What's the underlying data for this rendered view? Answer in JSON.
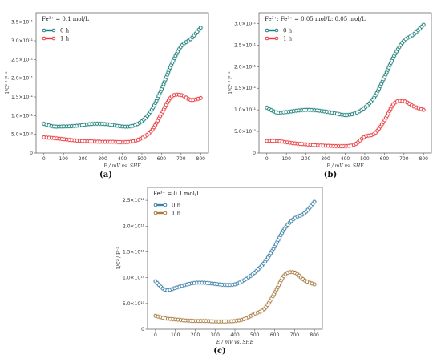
{
  "chart_data": [
    {
      "id": "a",
      "type": "line",
      "caption": "(a)",
      "annotation": "Fe²⁺ = 0.1 mol/L",
      "xlabel": "E / mV vs. SHE",
      "ylabel": "1/C² / F⁻²",
      "xlim": [
        -40,
        840
      ],
      "ylim": [
        0,
        375000000000.0
      ],
      "xticks": [
        0,
        100,
        200,
        300,
        400,
        500,
        600,
        700,
        800
      ],
      "yticks": [
        0,
        50000000000.0,
        100000000000.0,
        150000000000.0,
        200000000000.0,
        250000000000.0,
        300000000000.0,
        350000000000.0
      ],
      "ytick_labels": [
        "0",
        "5.0×10¹⁰",
        "1.0×10¹¹",
        "1.5×10¹¹",
        "2.0×10¹¹",
        "2.5×10¹¹",
        "3.0×10¹¹",
        "3.5×10¹¹"
      ],
      "legend_position": "top-left",
      "series": [
        {
          "name": "0 h",
          "color": "#1b7f7a",
          "x": [
            0,
            50,
            100,
            150,
            200,
            250,
            300,
            350,
            400,
            450,
            500,
            550,
            600,
            650,
            700,
            750,
            800
          ],
          "y": [
            78000000000.0,
            71000000000.0,
            71000000000.0,
            72000000000.0,
            75000000000.0,
            78000000000.0,
            78000000000.0,
            75000000000.0,
            71000000000.0,
            72000000000.0,
            85000000000.0,
            115000000000.0,
            170000000000.0,
            235000000000.0,
            285000000000.0,
            305000000000.0,
            335000000000.0
          ]
        },
        {
          "name": "1 h",
          "color": "#e8383d",
          "x": [
            0,
            50,
            100,
            150,
            200,
            250,
            300,
            350,
            400,
            450,
            500,
            550,
            600,
            650,
            700,
            750,
            800
          ],
          "y": [
            42000000000.0,
            40000000000.0,
            37000000000.0,
            34000000000.0,
            32000000000.0,
            31000000000.0,
            30000000000.0,
            30000000000.0,
            29000000000.0,
            31000000000.0,
            40000000000.0,
            60000000000.0,
            105000000000.0,
            150000000000.0,
            155000000000.0,
            142000000000.0,
            147000000000.0
          ]
        }
      ]
    },
    {
      "id": "b",
      "type": "line",
      "caption": "(b)",
      "annotation": "Fe²⁺: Fe³⁺ = 0.05 mol/L: 0.05 mol/L",
      "xlabel": "E / mV vs. SHE",
      "ylabel": "1/C² / F⁻²",
      "xlim": [
        -40,
        840
      ],
      "ylim": [
        0,
        325000000000.0
      ],
      "xticks": [
        0,
        100,
        200,
        300,
        400,
        500,
        600,
        700,
        800
      ],
      "yticks": [
        0,
        50000000000.0,
        100000000000.0,
        150000000000.0,
        200000000000.0,
        250000000000.0,
        300000000000.0
      ],
      "ytick_labels": [
        "0",
        "5.0×10¹⁰",
        "1.0×10¹¹",
        "1.5×10¹¹",
        "2.0×10¹¹",
        "2.5×10¹¹",
        "3.0×10¹¹"
      ],
      "legend_position": "top-left",
      "series": [
        {
          "name": "0 h",
          "color": "#1b7f7a",
          "x": [
            0,
            50,
            100,
            150,
            200,
            250,
            300,
            350,
            400,
            450,
            500,
            550,
            600,
            650,
            700,
            750,
            800
          ],
          "y": [
            105000000000.0,
            94000000000.0,
            95000000000.0,
            98000000000.0,
            100000000000.0,
            99000000000.0,
            96000000000.0,
            92000000000.0,
            88000000000.0,
            92000000000.0,
            105000000000.0,
            130000000000.0,
            175000000000.0,
            225000000000.0,
            260000000000.0,
            275000000000.0,
            297000000000.0
          ]
        },
        {
          "name": "1 h",
          "color": "#e8383d",
          "x": [
            0,
            50,
            100,
            150,
            200,
            250,
            300,
            350,
            400,
            450,
            500,
            550,
            600,
            650,
            700,
            750,
            800
          ],
          "y": [
            28000000000.0,
            28000000000.0,
            25000000000.0,
            22000000000.0,
            20000000000.0,
            18000000000.0,
            17000000000.0,
            16000000000.0,
            16000000000.0,
            20000000000.0,
            38000000000.0,
            45000000000.0,
            75000000000.0,
            115000000000.0,
            120000000000.0,
            108000000000.0,
            100000000000.0
          ]
        }
      ]
    },
    {
      "id": "c",
      "type": "line",
      "caption": "(c)",
      "annotation": "Fe³⁺ = 0.1 mol/L",
      "xlabel": "E / mV vs. SHE",
      "ylabel": "1/C² / F⁻²",
      "xlim": [
        -40,
        840
      ],
      "ylim": [
        0,
        275000000000.0
      ],
      "xticks": [
        0,
        100,
        200,
        300,
        400,
        500,
        600,
        700,
        800
      ],
      "yticks": [
        0,
        50000000000.0,
        100000000000.0,
        150000000000.0,
        200000000000.0,
        250000000000.0
      ],
      "ytick_labels": [
        "0",
        "5.0×10¹⁰",
        "1.0×10¹¹",
        "1.5×10¹¹",
        "2.0×10¹¹",
        "2.5×10¹¹"
      ],
      "legend_position": "top-left",
      "series": [
        {
          "name": "0 h",
          "color": "#3d7fa8",
          "x": [
            0,
            50,
            100,
            150,
            200,
            250,
            300,
            350,
            400,
            450,
            500,
            550,
            600,
            650,
            700,
            750,
            800
          ],
          "y": [
            93000000000.0,
            76000000000.0,
            80000000000.0,
            86000000000.0,
            90000000000.0,
            90000000000.0,
            88000000000.0,
            86000000000.0,
            87000000000.0,
            96000000000.0,
            110000000000.0,
            130000000000.0,
            160000000000.0,
            195000000000.0,
            215000000000.0,
            225000000000.0,
            247000000000.0
          ]
        },
        {
          "name": "1 h",
          "color": "#a87a40",
          "x": [
            0,
            50,
            100,
            150,
            200,
            250,
            300,
            350,
            400,
            450,
            500,
            550,
            600,
            650,
            700,
            750,
            800
          ],
          "y": [
            26000000000.0,
            21000000000.0,
            19000000000.0,
            17000000000.0,
            16000000000.0,
            16000000000.0,
            15000000000.0,
            15000000000.0,
            16000000000.0,
            20000000000.0,
            30000000000.0,
            40000000000.0,
            70000000000.0,
            105000000000.0,
            110000000000.0,
            95000000000.0,
            87000000000.0
          ]
        }
      ]
    }
  ]
}
